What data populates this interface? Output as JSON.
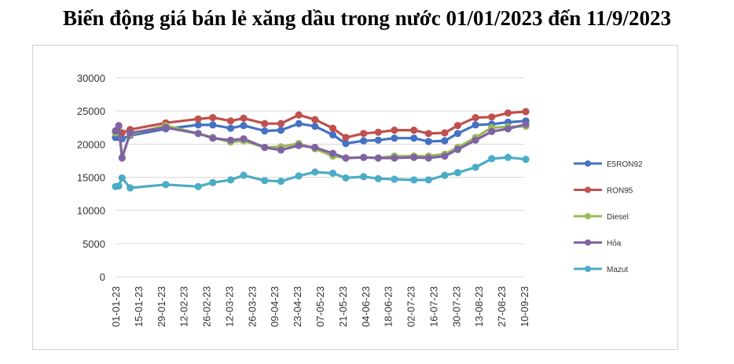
{
  "title": "Biến động giá bán lẻ xăng dầu trong nước 01/01/2023 đến 11/9/2023",
  "chart_data": {
    "type": "line",
    "x_tick_labels": [
      "01-01-23",
      "15-01-23",
      "29-01-23",
      "12-02-23",
      "26-02-23",
      "12-03-23",
      "26-03-23",
      "09-04-23",
      "23-04-23",
      "07-05-23",
      "21-05-23",
      "04-06-23",
      "18-06-23",
      "02-07-23",
      "16-07-23",
      "30-07-23",
      "13-08-23",
      "27-08-23",
      "10-09-23"
    ],
    "y_ticks": [
      0,
      5000,
      10000,
      15000,
      20000,
      25000,
      30000
    ],
    "ylim": [
      0,
      30000
    ],
    "x_dates": [
      "2023-01-01",
      "2023-01-03",
      "2023-01-05",
      "2023-01-10",
      "2023-02-01",
      "2023-02-21",
      "2023-03-02",
      "2023-03-13",
      "2023-03-21",
      "2023-04-03",
      "2023-04-13",
      "2023-04-24",
      "2023-05-04",
      "2023-05-15",
      "2023-05-23",
      "2023-06-03",
      "2023-06-12",
      "2023-06-22",
      "2023-07-04",
      "2023-07-13",
      "2023-07-23",
      "2023-07-31",
      "2023-08-11",
      "2023-08-21",
      "2023-08-31",
      "2023-09-11"
    ],
    "series": [
      {
        "name": "E5RON92",
        "color": "#4472C4",
        "values": [
          21000,
          21000,
          20800,
          21300,
          22300,
          22900,
          22900,
          22400,
          22800,
          22000,
          22100,
          23100,
          22700,
          21400,
          20100,
          20500,
          20600,
          20900,
          20900,
          20400,
          20500,
          21600,
          22900,
          23000,
          23300,
          23500
        ]
      },
      {
        "name": "RON95",
        "color": "#C0504D",
        "values": [
          22000,
          22000,
          21700,
          22200,
          23200,
          23800,
          24000,
          23500,
          23900,
          23100,
          23100,
          24400,
          23700,
          22400,
          21000,
          21600,
          21800,
          22100,
          22100,
          21600,
          21700,
          22800,
          24000,
          24100,
          24700,
          24900
        ]
      },
      {
        "name": "Diesel",
        "color": "#9BBB59",
        "values": [
          21700,
          22600,
          18000,
          21500,
          22800,
          21600,
          21000,
          20300,
          20500,
          19500,
          19600,
          20100,
          19300,
          18200,
          17900,
          18000,
          17900,
          18200,
          18200,
          18200,
          18500,
          19500,
          21000,
          22500,
          22600,
          22700
        ]
      },
      {
        "name": "Hỏa",
        "color": "#8064A2",
        "values": [
          22000,
          22800,
          17900,
          21700,
          22500,
          21600,
          20900,
          20600,
          20800,
          19500,
          19100,
          19800,
          19500,
          18600,
          17900,
          18000,
          17900,
          17900,
          18000,
          17900,
          18200,
          19200,
          20600,
          21900,
          22300,
          23000
        ]
      },
      {
        "name": "Mazut",
        "color": "#4BACC6",
        "values": [
          13600,
          13700,
          14900,
          13400,
          13900,
          13600,
          14200,
          14600,
          15300,
          14500,
          14400,
          15200,
          15800,
          15600,
          14900,
          15100,
          14800,
          14700,
          14600,
          14600,
          15300,
          15700,
          16500,
          17800,
          18000,
          17700
        ]
      }
    ]
  }
}
